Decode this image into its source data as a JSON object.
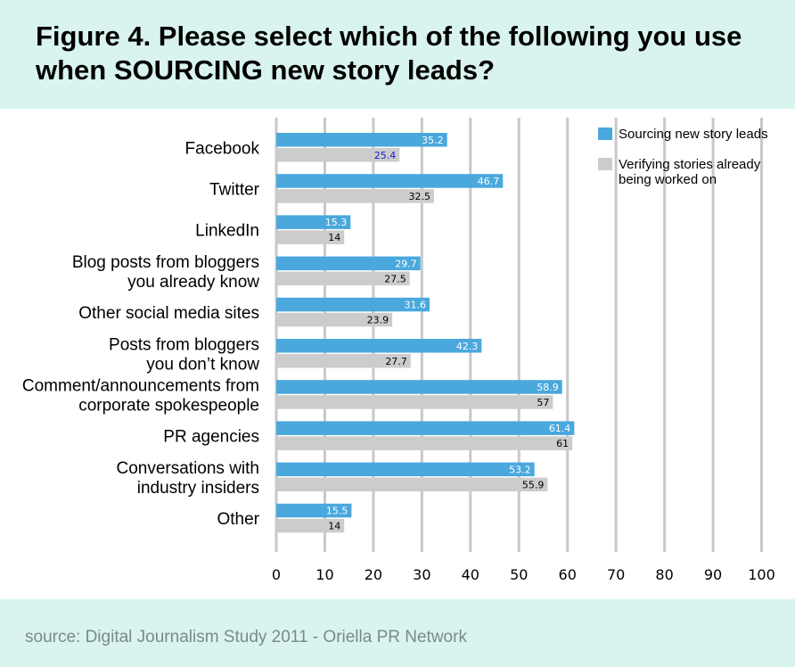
{
  "header": {
    "title": "Figure 4. Please select which of the following you use when SOURCING new story leads?"
  },
  "footer": {
    "source": "source: Digital Journalism Study 2011 - Oriella PR Network"
  },
  "chart_data": {
    "type": "bar",
    "orientation": "horizontal",
    "title": "Figure 4. Please select which of the following you use when SOURCING new story leads?",
    "categories": [
      [
        "Facebook"
      ],
      [
        "Twitter"
      ],
      [
        "LinkedIn"
      ],
      [
        "Blog posts from bloggers",
        "you already know"
      ],
      [
        "Other social media sites"
      ],
      [
        "Posts from bloggers",
        "you don’t know"
      ],
      [
        "Comment/announcements from",
        "corporate spokespeople"
      ],
      [
        "PR agencies"
      ],
      [
        "Conversations with",
        "industry insiders"
      ],
      [
        "Other"
      ]
    ],
    "series": [
      {
        "name": "Sourcing new story leads",
        "color": "#4aa8dd",
        "label_color": "#ffffff",
        "values": [
          35.2,
          46.7,
          15.3,
          29.7,
          31.6,
          42.3,
          58.9,
          61.4,
          53.2,
          15.5
        ],
        "labels": [
          "35.2",
          "46.7",
          "15.3",
          "29.7",
          "31.6",
          "42.3",
          "58.9",
          "61.4",
          "53.2",
          "15.5"
        ]
      },
      {
        "name": "Verifying stories already being worked on",
        "legend_lines": [
          "Verifying stories already",
          "being worked on"
        ],
        "color": "#cccccc",
        "label_color": "#000000",
        "values": [
          25.4,
          32.5,
          14,
          27.5,
          23.9,
          27.7,
          57,
          61,
          55.9,
          14
        ],
        "labels": [
          "25.4",
          "32.5",
          "14",
          "27.5",
          "23.9",
          "27.7",
          "57",
          "61",
          "55.9",
          "14"
        ],
        "label_color_overrides": {
          "0": "#1a1acc"
        }
      }
    ],
    "xlim": [
      0,
      100
    ],
    "xticks": [
      0,
      10,
      20,
      30,
      40,
      50,
      60,
      70,
      80,
      90,
      100
    ],
    "grid": true,
    "gridline_color": "#c8c8c8",
    "legend_position": "top-right",
    "xlabel": "",
    "ylabel": ""
  }
}
